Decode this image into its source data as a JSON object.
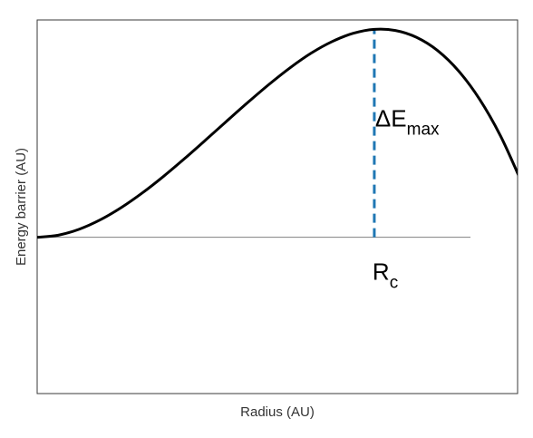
{
  "chart_data": {
    "type": "line",
    "title": "",
    "xlabel": "Radius (AU)",
    "ylabel": "Energy barrier (AU)",
    "xlim": [
      0,
      1.14
    ],
    "ylim": [
      -1.1,
      1.53
    ],
    "grid": false,
    "legend": "none",
    "series": [
      {
        "color": "#000000",
        "x": [
          0,
          0.05,
          0.1,
          0.15,
          0.2,
          0.25,
          0.3,
          0.35,
          0.4,
          0.45,
          0.5,
          0.55,
          0.6,
          0.65,
          0.7,
          0.75,
          0.8,
          0.85,
          0.9,
          0.95,
          1.0,
          1.05,
          1.1,
          1.15
        ],
        "y": [
          0,
          0.0149,
          0.0571,
          0.1234,
          0.2101,
          0.3134,
          0.4294,
          0.5547,
          0.6855,
          0.8184,
          0.9496,
          1.076,
          1.193,
          1.296,
          1.378,
          1.436,
          1.464,
          1.456,
          1.408,
          1.315,
          1.171,
          0.971,
          0.711,
          0.385
        ]
      }
    ],
    "baseline": {
      "y": 0,
      "color": "#808080"
    },
    "annotations": [
      {
        "type": "vline",
        "x": 0.8,
        "y0": 0,
        "y1": 1.464,
        "style": "dashed",
        "color": "#1f77b4"
      },
      {
        "type": "text",
        "text": "ΔE",
        "subscript": "max",
        "x": 0.8,
        "y": 0.78
      },
      {
        "type": "text",
        "text": "R",
        "subscript": "c",
        "x": 0.8,
        "y": -0.3
      }
    ]
  }
}
